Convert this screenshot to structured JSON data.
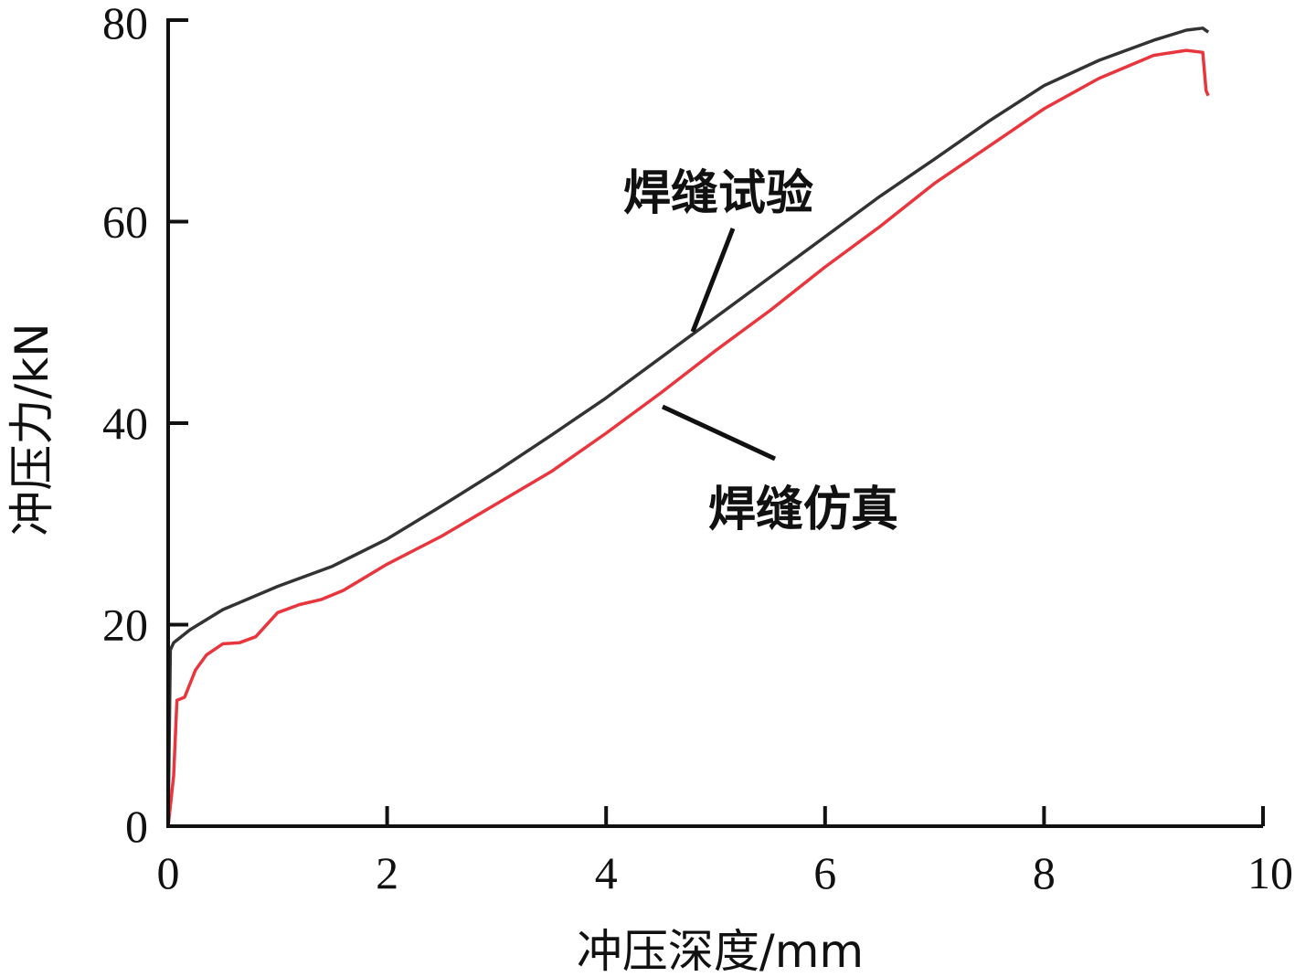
{
  "chart_data": {
    "type": "line",
    "title": "",
    "xlabel": "冲压深度/mm",
    "ylabel": "冲压力/kN",
    "xlim": [
      0,
      10
    ],
    "ylim": [
      0,
      80
    ],
    "xticks": [
      0,
      2,
      4,
      6,
      8,
      10
    ],
    "yticks": [
      0,
      20,
      40,
      60,
      80
    ],
    "grid": false,
    "legend": "none",
    "series": [
      {
        "name": "焊缝试验",
        "color": "#333333",
        "x": [
          0,
          0.02,
          0.05,
          0.2,
          0.5,
          1.0,
          1.5,
          2.0,
          2.5,
          3.0,
          3.5,
          4.0,
          4.5,
          5.0,
          5.5,
          6.0,
          6.5,
          7.0,
          7.5,
          8.0,
          8.5,
          9.0,
          9.3,
          9.45,
          9.5
        ],
        "y": [
          0,
          17.5,
          18.2,
          19.5,
          21.5,
          23.8,
          25.8,
          28.5,
          31.8,
          35.2,
          38.8,
          42.5,
          46.5,
          50.5,
          54.5,
          58.5,
          62.5,
          66.2,
          70.0,
          73.5,
          76.0,
          78.0,
          79.0,
          79.2,
          78.8
        ]
      },
      {
        "name": "焊缝仿真",
        "color": "#e8363e",
        "x": [
          0,
          0.05,
          0.08,
          0.15,
          0.25,
          0.35,
          0.5,
          0.65,
          0.8,
          1.0,
          1.2,
          1.4,
          1.6,
          2.0,
          2.5,
          3.0,
          3.5,
          4.0,
          4.5,
          5.0,
          5.5,
          6.0,
          6.5,
          7.0,
          7.5,
          8.0,
          8.5,
          9.0,
          9.3,
          9.45,
          9.48,
          9.5
        ],
        "y": [
          0,
          5,
          12.5,
          12.8,
          15.5,
          17,
          18.1,
          18.2,
          18.8,
          21.2,
          22,
          22.5,
          23.4,
          26.0,
          28.8,
          32.0,
          35.2,
          39.0,
          43.0,
          47.2,
          51.2,
          55.5,
          59.5,
          63.8,
          67.5,
          71.2,
          74.2,
          76.5,
          77.0,
          76.8,
          73.0,
          72.5
        ]
      }
    ],
    "annotations": [
      {
        "text": "焊缝试验",
        "series": "焊缝试验"
      },
      {
        "text": "焊缝仿真",
        "series": "焊缝仿真"
      }
    ]
  }
}
